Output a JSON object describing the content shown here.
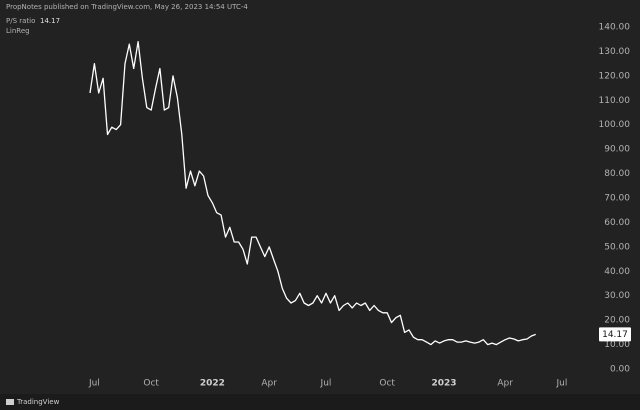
{
  "header": {
    "publisher": "PropNotes published on TradingView.com, May 26, 2023 14:54 UTC-4",
    "indicator": "LinReg"
  },
  "footer": {
    "brand": "TradingView"
  },
  "chart_data": {
    "type": "line",
    "categories": [
      null,
      "Jul",
      null,
      null,
      null,
      null,
      null,
      null,
      null,
      null,
      null,
      null,
      null,
      null,
      "Oct",
      null,
      null,
      null,
      null,
      null,
      null,
      null,
      null,
      null,
      null,
      null,
      null,
      null,
      "2022",
      null,
      null,
      null,
      null,
      null,
      null,
      null,
      null,
      null,
      null,
      null,
      null,
      "Apr",
      null,
      null,
      null,
      null,
      null,
      null,
      null,
      null,
      null,
      null,
      null,
      null,
      "Jul",
      null,
      null,
      null,
      null,
      null,
      null,
      null,
      null,
      null,
      null,
      null,
      null,
      null,
      "Oct",
      null,
      null,
      null,
      null,
      null,
      null,
      null,
      null,
      null,
      null,
      null,
      null,
      "2023",
      null,
      null,
      null,
      null,
      null,
      null,
      null,
      null,
      null,
      null,
      null,
      null,
      null,
      "Apr",
      null,
      null,
      null,
      null,
      null,
      null,
      null,
      null,
      null,
      null,
      null,
      null,
      "Jul"
    ],
    "series": [
      {
        "name": "P/S ratio",
        "color": "#ffffff",
        "values": [
          113,
          125,
          113,
          119,
          96,
          99,
          98,
          100,
          125,
          133,
          123,
          134,
          119,
          107,
          106,
          115,
          123,
          106,
          107,
          120,
          111,
          96,
          74,
          81,
          75,
          81,
          79,
          71,
          68,
          64,
          63,
          54,
          58,
          52,
          52,
          49,
          43,
          54,
          54,
          50,
          46,
          50,
          45,
          40,
          33,
          29,
          27,
          28,
          31,
          27,
          26,
          27,
          30,
          27,
          31,
          27,
          30,
          24,
          26,
          27,
          25,
          27,
          26,
          27,
          24,
          26,
          24,
          23,
          23,
          19,
          21,
          22,
          15,
          16,
          13,
          12,
          12,
          11,
          10,
          11.5,
          10.6,
          11.5,
          12,
          12,
          11,
          11,
          11.5,
          11,
          10.6,
          11,
          12,
          10,
          10.6,
          10,
          11,
          12,
          12.7,
          12.3,
          11.5,
          12,
          12.3,
          13.5,
          14.17,
          null,
          null,
          null,
          null,
          null,
          null
        ],
        "value_labels": [
          null,
          null,
          null,
          null,
          null,
          null,
          null,
          null,
          null,
          null,
          null,
          null,
          null,
          null,
          null,
          null,
          null,
          null,
          null,
          null,
          null,
          null,
          null,
          null,
          null,
          null,
          null,
          null,
          null,
          null,
          null,
          null,
          null,
          null,
          null,
          null,
          null,
          null,
          null,
          null,
          null,
          null,
          null,
          null,
          null,
          null,
          null,
          null,
          null,
          null,
          null,
          null,
          null,
          null,
          null,
          null,
          null,
          null,
          null,
          null,
          null,
          null,
          null,
          null,
          null,
          null,
          null,
          null,
          null,
          null,
          null,
          null,
          null,
          null,
          null,
          null,
          null,
          null,
          null,
          null,
          null,
          null,
          null,
          null,
          null,
          null,
          null,
          null,
          null,
          null,
          null,
          null,
          null,
          null,
          null,
          null,
          null,
          null,
          null,
          null,
          null,
          null,
          "14.17",
          null,
          null,
          null,
          null,
          null,
          null
        ]
      }
    ],
    "ylim": [
      -0.5,
      143
    ],
    "yticks": [
      {
        "value": 0,
        "label": "0.00"
      },
      {
        "value": 10,
        "label": "10.00"
      },
      {
        "value": 20,
        "label": "20.00"
      },
      {
        "value": 30,
        "label": "30.00"
      },
      {
        "value": 40,
        "label": "40.00"
      },
      {
        "value": 50,
        "label": "50.00"
      },
      {
        "value": 60,
        "label": "60.00"
      },
      {
        "value": 70,
        "label": "70.00"
      },
      {
        "value": 80,
        "label": "80.00"
      },
      {
        "value": 90,
        "label": "90.00"
      },
      {
        "value": 100,
        "label": "100.00"
      },
      {
        "value": 110,
        "label": "110.00"
      },
      {
        "value": 120,
        "label": "120.00"
      },
      {
        "value": 130,
        "label": "130.00"
      },
      {
        "value": 140,
        "label": "140.00"
      }
    ],
    "grid": false
  }
}
